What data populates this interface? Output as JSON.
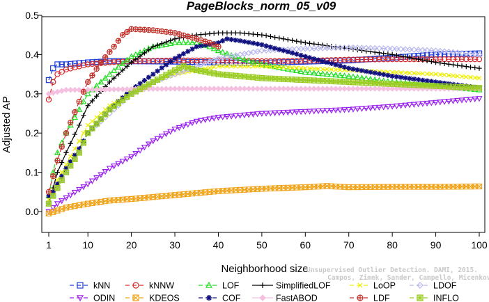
{
  "chart_data": {
    "type": "line",
    "title": "PageBlocks_norm_05_v09",
    "xlabel": "Neighborhood size",
    "ylabel": "Adjusted AP",
    "xlim": [
      1,
      100
    ],
    "ylim": [
      -0.05,
      0.5
    ],
    "xticks": [
      1,
      10,
      20,
      30,
      40,
      50,
      60,
      70,
      80,
      90,
      100
    ],
    "yticks": [
      0.0,
      0.1,
      0.2,
      0.3,
      0.4,
      0.5
    ],
    "ytick_labels": [
      "0.0",
      "0.1",
      "0.2",
      "0.3",
      "0.4",
      "0.5"
    ],
    "grid": false,
    "legend_position": "bottom",
    "series": [
      {
        "name": "kNN",
        "color": "#1f3fd6",
        "marker": "square",
        "dash": "6,4",
        "points": [
          [
            1,
            0.335
          ],
          [
            2,
            0.365
          ],
          [
            3,
            0.375
          ],
          [
            5,
            0.375
          ],
          [
            10,
            0.38
          ],
          [
            15,
            0.383
          ],
          [
            20,
            0.383
          ],
          [
            30,
            0.382
          ],
          [
            40,
            0.38
          ],
          [
            50,
            0.379
          ],
          [
            60,
            0.382
          ],
          [
            70,
            0.385
          ],
          [
            80,
            0.392
          ],
          [
            90,
            0.4
          ],
          [
            100,
            0.403
          ]
        ]
      },
      {
        "name": "kNNW",
        "color": "#d42a2a",
        "marker": "circle",
        "dash": "6,4",
        "points": [
          [
            1,
            0.285
          ],
          [
            2,
            0.33
          ],
          [
            3,
            0.35
          ],
          [
            5,
            0.362
          ],
          [
            10,
            0.375
          ],
          [
            15,
            0.38
          ],
          [
            20,
            0.383
          ],
          [
            30,
            0.385
          ],
          [
            40,
            0.385
          ],
          [
            50,
            0.383
          ],
          [
            60,
            0.384
          ],
          [
            70,
            0.387
          ],
          [
            80,
            0.388
          ],
          [
            90,
            0.388
          ],
          [
            100,
            0.388
          ]
        ]
      },
      {
        "name": "LOF",
        "color": "#22dd22",
        "marker": "triangle-up",
        "dash": "6,4",
        "points": [
          [
            1,
            0.04
          ],
          [
            2,
            0.1
          ],
          [
            3,
            0.15
          ],
          [
            5,
            0.2
          ],
          [
            8,
            0.26
          ],
          [
            10,
            0.3
          ],
          [
            15,
            0.35
          ],
          [
            20,
            0.395
          ],
          [
            25,
            0.42
          ],
          [
            30,
            0.43
          ],
          [
            35,
            0.43
          ],
          [
            38,
            0.42
          ],
          [
            40,
            0.41
          ],
          [
            45,
            0.39
          ],
          [
            50,
            0.375
          ],
          [
            60,
            0.355
          ],
          [
            70,
            0.345
          ],
          [
            80,
            0.33
          ],
          [
            90,
            0.32
          ],
          [
            100,
            0.31
          ]
        ]
      },
      {
        "name": "SimplifiedLOF",
        "color": "#000000",
        "marker": "plus",
        "dash": "none",
        "points": [
          [
            1,
            0.02
          ],
          [
            2,
            0.06
          ],
          [
            3,
            0.1
          ],
          [
            5,
            0.15
          ],
          [
            8,
            0.22
          ],
          [
            10,
            0.27
          ],
          [
            15,
            0.33
          ],
          [
            20,
            0.38
          ],
          [
            25,
            0.42
          ],
          [
            30,
            0.44
          ],
          [
            35,
            0.45
          ],
          [
            40,
            0.455
          ],
          [
            45,
            0.455
          ],
          [
            50,
            0.45
          ],
          [
            55,
            0.44
          ],
          [
            60,
            0.43
          ],
          [
            70,
            0.415
          ],
          [
            80,
            0.4
          ],
          [
            90,
            0.38
          ],
          [
            100,
            0.365
          ]
        ]
      },
      {
        "name": "LoOP",
        "color": "#eeee00",
        "marker": "x",
        "dash": "6,4",
        "points": [
          [
            1,
            0.03
          ],
          [
            3,
            0.08
          ],
          [
            5,
            0.12
          ],
          [
            8,
            0.18
          ],
          [
            10,
            0.22
          ],
          [
            15,
            0.27
          ],
          [
            20,
            0.3
          ],
          [
            25,
            0.33
          ],
          [
            30,
            0.35
          ],
          [
            35,
            0.36
          ],
          [
            40,
            0.37
          ],
          [
            50,
            0.37
          ],
          [
            60,
            0.365
          ],
          [
            70,
            0.36
          ],
          [
            80,
            0.355
          ],
          [
            90,
            0.35
          ],
          [
            100,
            0.34
          ]
        ]
      },
      {
        "name": "LDOF",
        "color": "#b7b7ee",
        "marker": "diamond",
        "dash": "6,4",
        "points": [
          [
            1,
            0.02
          ],
          [
            3,
            0.06
          ],
          [
            5,
            0.1
          ],
          [
            8,
            0.15
          ],
          [
            10,
            0.2
          ],
          [
            15,
            0.25
          ],
          [
            20,
            0.3
          ],
          [
            25,
            0.33
          ],
          [
            30,
            0.35
          ],
          [
            35,
            0.37
          ],
          [
            40,
            0.39
          ],
          [
            45,
            0.4
          ],
          [
            50,
            0.41
          ],
          [
            60,
            0.415
          ],
          [
            70,
            0.418
          ],
          [
            80,
            0.415
          ],
          [
            90,
            0.41
          ],
          [
            100,
            0.4
          ]
        ]
      },
      {
        "name": "ODIN",
        "color": "#9a22ee",
        "marker": "triangle-down",
        "dash": "6,4",
        "points": [
          [
            1,
            0.0
          ],
          [
            3,
            0.02
          ],
          [
            5,
            0.035
          ],
          [
            10,
            0.07
          ],
          [
            15,
            0.11
          ],
          [
            20,
            0.14
          ],
          [
            25,
            0.18
          ],
          [
            30,
            0.21
          ],
          [
            35,
            0.23
          ],
          [
            40,
            0.24
          ],
          [
            45,
            0.245
          ],
          [
            50,
            0.25
          ],
          [
            60,
            0.255
          ],
          [
            70,
            0.26
          ],
          [
            80,
            0.268
          ],
          [
            90,
            0.278
          ],
          [
            100,
            0.288
          ]
        ]
      },
      {
        "name": "KDEOS",
        "color": "#f0a51c",
        "marker": "square-x",
        "dash": "6,4",
        "points": [
          [
            1,
            -0.005
          ],
          [
            5,
            0.01
          ],
          [
            10,
            0.02
          ],
          [
            15,
            0.028
          ],
          [
            20,
            0.032
          ],
          [
            30,
            0.042
          ],
          [
            40,
            0.052
          ],
          [
            50,
            0.058
          ],
          [
            60,
            0.062
          ],
          [
            65,
            0.065
          ],
          [
            70,
            0.062
          ],
          [
            80,
            0.063
          ],
          [
            90,
            0.063
          ],
          [
            100,
            0.064
          ]
        ]
      },
      {
        "name": "COF",
        "color": "#101080",
        "marker": "asterisk",
        "dash": "6,4",
        "points": [
          [
            1,
            0.04
          ],
          [
            2,
            0.05
          ],
          [
            3,
            0.07
          ],
          [
            5,
            0.11
          ],
          [
            8,
            0.16
          ],
          [
            10,
            0.2
          ],
          [
            15,
            0.26
          ],
          [
            20,
            0.31
          ],
          [
            25,
            0.35
          ],
          [
            30,
            0.39
          ],
          [
            35,
            0.42
          ],
          [
            40,
            0.43
          ],
          [
            42,
            0.44
          ],
          [
            45,
            0.435
          ],
          [
            50,
            0.425
          ],
          [
            60,
            0.395
          ],
          [
            70,
            0.365
          ],
          [
            80,
            0.345
          ],
          [
            90,
            0.33
          ],
          [
            100,
            0.315
          ]
        ]
      },
      {
        "name": "FastABOD",
        "color": "#f5bfe0",
        "marker": "diamond-filled",
        "dash": "none",
        "points": [
          [
            1,
            0.3
          ],
          [
            3,
            0.305
          ],
          [
            5,
            0.31
          ],
          [
            10,
            0.31
          ],
          [
            20,
            0.312
          ],
          [
            30,
            0.313
          ],
          [
            40,
            0.313
          ],
          [
            50,
            0.313
          ],
          [
            60,
            0.313
          ],
          [
            70,
            0.313
          ],
          [
            80,
            0.313
          ],
          [
            90,
            0.313
          ],
          [
            100,
            0.313
          ]
        ]
      },
      {
        "name": "LDF",
        "color": "#c2302a",
        "marker": "circle-plus",
        "dash": "6,4",
        "points": [
          [
            1,
            0.05
          ],
          [
            3,
            0.13
          ],
          [
            5,
            0.2
          ],
          [
            8,
            0.28
          ],
          [
            10,
            0.33
          ],
          [
            13,
            0.38
          ],
          [
            16,
            0.42
          ],
          [
            18,
            0.45
          ],
          [
            20,
            0.465
          ],
          [
            25,
            0.462
          ],
          [
            30,
            0.455
          ],
          [
            35,
            0.44
          ],
          [
            38,
            0.43
          ],
          [
            40,
            0.42
          ]
        ]
      },
      {
        "name": "INFLO",
        "color": "#9acc22",
        "marker": "star",
        "dash": "6,4",
        "points": [
          [
            1,
            0.02
          ],
          [
            3,
            0.06
          ],
          [
            5,
            0.1
          ],
          [
            8,
            0.15
          ],
          [
            10,
            0.2
          ],
          [
            15,
            0.26
          ],
          [
            20,
            0.3
          ],
          [
            25,
            0.33
          ],
          [
            30,
            0.36
          ],
          [
            32,
            0.37
          ],
          [
            35,
            0.36
          ],
          [
            40,
            0.35
          ],
          [
            45,
            0.345
          ],
          [
            50,
            0.34
          ],
          [
            60,
            0.335
          ],
          [
            70,
            0.33
          ],
          [
            80,
            0.325
          ],
          [
            90,
            0.32
          ],
          [
            100,
            0.315
          ]
        ]
      }
    ],
    "legend_rows": [
      [
        "kNN",
        "kNNW",
        "LOF",
        "SimplifiedLOF",
        "LoOP",
        "LDOF"
      ],
      [
        "ODIN",
        "KDEOS",
        "COF",
        "FastABOD",
        "LDF",
        "INFLO"
      ]
    ],
    "watermark_lines": [
      "Unsupervised Outlier Detection. DAMI, 2015.",
      "Campos, Zimek, Sander, Campello, Micenkova, Schubert, Assent, Houle"
    ]
  }
}
